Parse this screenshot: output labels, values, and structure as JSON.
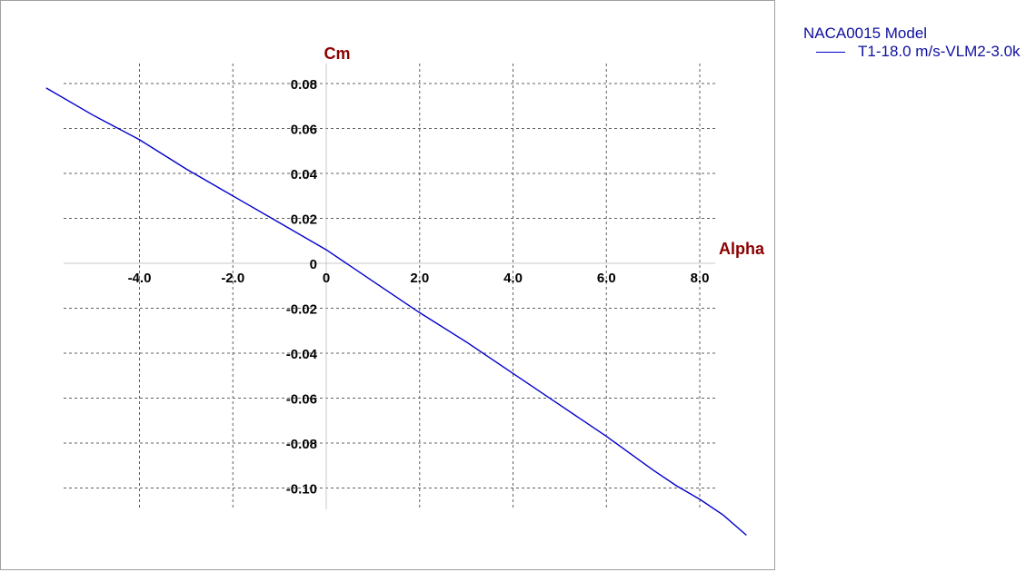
{
  "chart_data": {
    "type": "line",
    "title": "",
    "xlabel": "Alpha",
    "ylabel": "Cm",
    "xlim": [
      -5.7,
      8.4
    ],
    "ylim": [
      -0.111,
      0.088
    ],
    "grid": true,
    "x_ticks": [
      -4.0,
      -2.0,
      0,
      2.0,
      4.0,
      6.0,
      8.0
    ],
    "x_tick_labels": [
      "-4.0",
      "-2.0",
      "0",
      "2.0",
      "4.0",
      "6.0",
      "8.0"
    ],
    "y_ticks": [
      0.08,
      0.06,
      0.04,
      0.02,
      0,
      -0.02,
      -0.04,
      -0.06,
      -0.08,
      -0.1
    ],
    "y_tick_labels": [
      "0.08",
      "0.06",
      "0.04",
      "0.02",
      "0",
      "-0.02",
      "-0.04",
      "-0.06",
      "-0.08",
      "-0.10"
    ],
    "legend_position": "top-right",
    "legend_title": "NACA0015 Model",
    "series": [
      {
        "name": "T1-18.0 m/s-VLM2-3.0k",
        "color": "#0000cc",
        "x": [
          -6.0,
          -5.0,
          -4.0,
          -3.0,
          -2.0,
          -1.0,
          0.0,
          1.0,
          2.0,
          3.0,
          4.0,
          5.0,
          6.0,
          7.0,
          7.5,
          8.0,
          8.5,
          9.0
        ],
        "y": [
          0.078,
          0.066,
          0.055,
          0.042,
          0.03,
          0.018,
          0.006,
          -0.008,
          -0.022,
          -0.035,
          -0.049,
          -0.063,
          -0.077,
          -0.092,
          -0.099,
          -0.105,
          -0.112,
          -0.121
        ]
      }
    ]
  }
}
